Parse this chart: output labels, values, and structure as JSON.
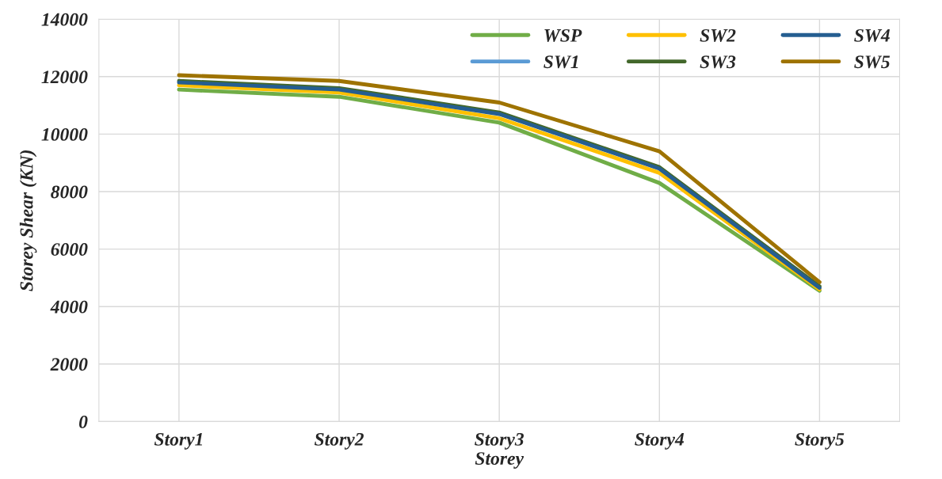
{
  "chart_data": {
    "type": "line",
    "xlabel": "Storey",
    "ylabel": "Storey Shear (KN)",
    "categories": [
      "Story1",
      "Story2",
      "Story3",
      "Story4",
      "Story5"
    ],
    "series": [
      {
        "name": "WSP",
        "color": "#70ad47",
        "values": [
          11550,
          11300,
          10400,
          8300,
          4550
        ]
      },
      {
        "name": "SW1",
        "color": "#5b9bd5",
        "values": [
          null,
          null,
          null,
          null,
          null
        ]
      },
      {
        "name": "SW2",
        "color": "#ffc000",
        "values": [
          11700,
          11450,
          10550,
          8650,
          4600
        ]
      },
      {
        "name": "SW3",
        "color": "#43682b",
        "values": [
          11850,
          11600,
          10750,
          8850,
          4700
        ]
      },
      {
        "name": "SW4",
        "color": "#255e91",
        "values": [
          11800,
          11550,
          10700,
          8800,
          4650
        ]
      },
      {
        "name": "SW5",
        "color": "#9e7300",
        "values": [
          12050,
          11850,
          11100,
          9400,
          4850
        ]
      }
    ],
    "ylim": [
      0,
      14000
    ],
    "yticks": [
      0,
      2000,
      4000,
      6000,
      8000,
      10000,
      12000,
      14000
    ],
    "grid": true,
    "legend": "top right",
    "marker": "none",
    "line_style": "solid"
  }
}
